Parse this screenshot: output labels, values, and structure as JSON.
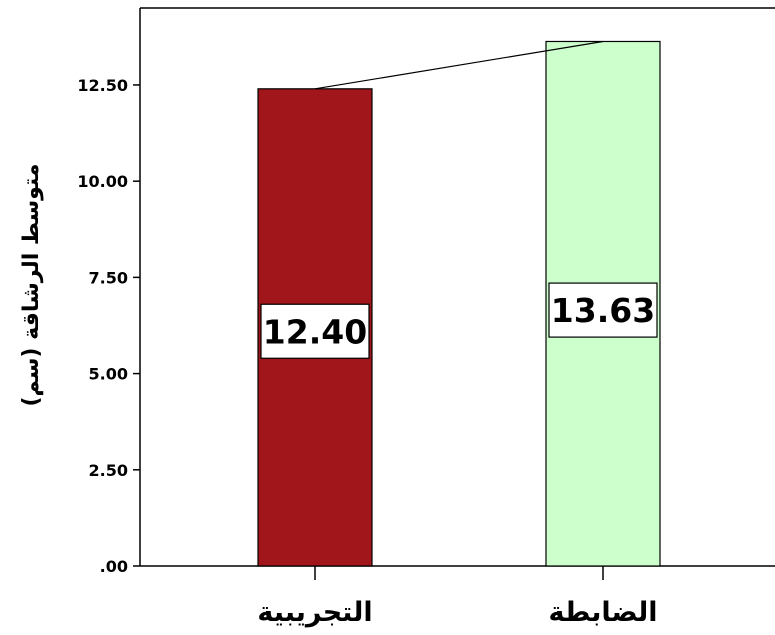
{
  "chart_data": {
    "type": "bar",
    "categories": [
      "التجريبية",
      "الضابطة"
    ],
    "values": [
      12.4,
      13.63
    ],
    "value_labels": [
      "12.40",
      "13.63"
    ],
    "bar_colors": [
      "#a0161a",
      "#ccffcc"
    ],
    "ylabel": "متوسط الرشاقة (سم)",
    "xlabel": "",
    "title": "",
    "ylim": [
      0,
      14.5
    ],
    "y_ticks": [
      0,
      2.5,
      5,
      7.5,
      10,
      12.5
    ],
    "y_tick_labels": [
      ".00",
      "2.50",
      "5.00",
      "7.50",
      "10.00",
      "12.50"
    ],
    "connecting_line": true,
    "grid": false,
    "legend": "none"
  }
}
